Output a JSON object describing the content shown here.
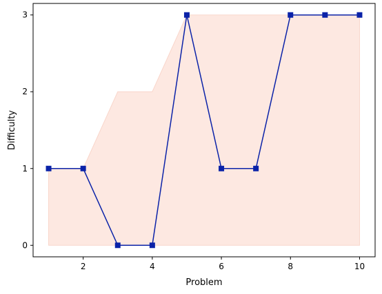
{
  "chart_data": {
    "type": "line",
    "title": "",
    "xlabel": "Problem",
    "ylabel": "Difficulty",
    "xlim": [
      0.55,
      10.45
    ],
    "ylim": [
      -0.15,
      3.15
    ],
    "xticks": [
      2,
      4,
      6,
      8,
      10
    ],
    "yticks": [
      0,
      1,
      2,
      3
    ],
    "grid": false,
    "legend": "none",
    "series": [
      {
        "kind": "line",
        "x": [
          1,
          2,
          3,
          4,
          5,
          6,
          7,
          8,
          9,
          10
        ],
        "y": [
          1,
          1,
          0,
          0,
          3,
          1,
          1,
          3,
          3,
          3
        ],
        "color": "#0a22a8",
        "marker": "square"
      },
      {
        "kind": "area",
        "x": [
          1,
          2,
          3,
          4,
          5,
          6,
          7,
          8,
          9,
          10
        ],
        "y": [
          1,
          1,
          2,
          2,
          3,
          3,
          3,
          3,
          3,
          3
        ],
        "baseline": 0,
        "color": "#fde8e1",
        "edge_color": "#f9d6cb"
      }
    ]
  }
}
